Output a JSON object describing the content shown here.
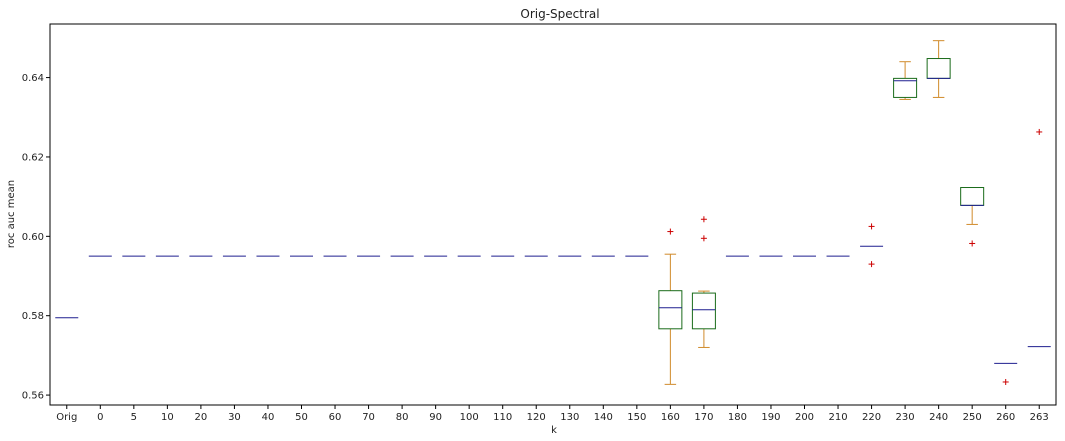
{
  "chart_data": {
    "type": "box",
    "title": "Orig-Spectral",
    "xlabel": "k",
    "ylabel": "roc auc mean",
    "ylim": [
      0.5575,
      0.6535
    ],
    "yticks": [
      0.56,
      0.58,
      0.6,
      0.62,
      0.64
    ],
    "ytick_labels": [
      "0.56",
      "0.58",
      "0.60",
      "0.62",
      "0.64"
    ],
    "grid": false,
    "colors": {
      "box": "#1a6b1a",
      "whisker": "#d08a2a",
      "median": "#1f1f8f",
      "flier": "#cc0000",
      "axis": "#000000"
    },
    "categories": [
      "Orig",
      "0",
      "5",
      "10",
      "20",
      "30",
      "40",
      "50",
      "60",
      "70",
      "80",
      "90",
      "100",
      "110",
      "120",
      "130",
      "140",
      "150",
      "160",
      "170",
      "180",
      "190",
      "200",
      "210",
      "220",
      "230",
      "240",
      "250",
      "260",
      "263"
    ],
    "boxes": [
      {
        "label": "Orig",
        "q1": 0.5795,
        "median": 0.5795,
        "q3": 0.5795,
        "whislo": 0.5795,
        "whishi": 0.5795,
        "fliers": []
      },
      {
        "label": "0",
        "q1": 0.595,
        "median": 0.595,
        "q3": 0.595,
        "whislo": 0.595,
        "whishi": 0.595,
        "fliers": []
      },
      {
        "label": "5",
        "q1": 0.595,
        "median": 0.595,
        "q3": 0.595,
        "whislo": 0.595,
        "whishi": 0.595,
        "fliers": []
      },
      {
        "label": "10",
        "q1": 0.595,
        "median": 0.595,
        "q3": 0.595,
        "whislo": 0.595,
        "whishi": 0.595,
        "fliers": []
      },
      {
        "label": "20",
        "q1": 0.595,
        "median": 0.595,
        "q3": 0.595,
        "whislo": 0.595,
        "whishi": 0.595,
        "fliers": []
      },
      {
        "label": "30",
        "q1": 0.595,
        "median": 0.595,
        "q3": 0.595,
        "whislo": 0.595,
        "whishi": 0.595,
        "fliers": []
      },
      {
        "label": "40",
        "q1": 0.595,
        "median": 0.595,
        "q3": 0.595,
        "whislo": 0.595,
        "whishi": 0.595,
        "fliers": []
      },
      {
        "label": "50",
        "q1": 0.595,
        "median": 0.595,
        "q3": 0.595,
        "whislo": 0.595,
        "whishi": 0.595,
        "fliers": []
      },
      {
        "label": "60",
        "q1": 0.595,
        "median": 0.595,
        "q3": 0.595,
        "whislo": 0.595,
        "whishi": 0.595,
        "fliers": []
      },
      {
        "label": "70",
        "q1": 0.595,
        "median": 0.595,
        "q3": 0.595,
        "whislo": 0.595,
        "whishi": 0.595,
        "fliers": []
      },
      {
        "label": "80",
        "q1": 0.595,
        "median": 0.595,
        "q3": 0.595,
        "whislo": 0.595,
        "whishi": 0.595,
        "fliers": []
      },
      {
        "label": "90",
        "q1": 0.595,
        "median": 0.595,
        "q3": 0.595,
        "whislo": 0.595,
        "whishi": 0.595,
        "fliers": []
      },
      {
        "label": "100",
        "q1": 0.595,
        "median": 0.595,
        "q3": 0.595,
        "whislo": 0.595,
        "whishi": 0.595,
        "fliers": []
      },
      {
        "label": "110",
        "q1": 0.595,
        "median": 0.595,
        "q3": 0.595,
        "whislo": 0.595,
        "whishi": 0.595,
        "fliers": []
      },
      {
        "label": "120",
        "q1": 0.595,
        "median": 0.595,
        "q3": 0.595,
        "whislo": 0.595,
        "whishi": 0.595,
        "fliers": []
      },
      {
        "label": "130",
        "q1": 0.595,
        "median": 0.595,
        "q3": 0.595,
        "whislo": 0.595,
        "whishi": 0.595,
        "fliers": []
      },
      {
        "label": "140",
        "q1": 0.595,
        "median": 0.595,
        "q3": 0.595,
        "whislo": 0.595,
        "whishi": 0.595,
        "fliers": []
      },
      {
        "label": "150",
        "q1": 0.595,
        "median": 0.595,
        "q3": 0.595,
        "whislo": 0.595,
        "whishi": 0.595,
        "fliers": []
      },
      {
        "label": "160",
        "q1": 0.5767,
        "median": 0.582,
        "q3": 0.5863,
        "whislo": 0.5627,
        "whishi": 0.5955,
        "fliers": [
          0.6012
        ]
      },
      {
        "label": "170",
        "q1": 0.5767,
        "median": 0.5815,
        "q3": 0.5857,
        "whislo": 0.572,
        "whishi": 0.5862,
        "fliers": [
          0.6043,
          0.5995
        ]
      },
      {
        "label": "180",
        "q1": 0.595,
        "median": 0.595,
        "q3": 0.595,
        "whislo": 0.595,
        "whishi": 0.595,
        "fliers": []
      },
      {
        "label": "190",
        "q1": 0.595,
        "median": 0.595,
        "q3": 0.595,
        "whislo": 0.595,
        "whishi": 0.595,
        "fliers": []
      },
      {
        "label": "200",
        "q1": 0.595,
        "median": 0.595,
        "q3": 0.595,
        "whislo": 0.595,
        "whishi": 0.595,
        "fliers": []
      },
      {
        "label": "210",
        "q1": 0.595,
        "median": 0.595,
        "q3": 0.595,
        "whislo": 0.595,
        "whishi": 0.595,
        "fliers": []
      },
      {
        "label": "220",
        "q1": 0.5975,
        "median": 0.5975,
        "q3": 0.5975,
        "whislo": 0.5975,
        "whishi": 0.5975,
        "fliers": [
          0.6025,
          0.593
        ]
      },
      {
        "label": "230",
        "q1": 0.635,
        "median": 0.6392,
        "q3": 0.6398,
        "whislo": 0.6345,
        "whishi": 0.644,
        "fliers": []
      },
      {
        "label": "240",
        "q1": 0.6398,
        "median": 0.6398,
        "q3": 0.6448,
        "whislo": 0.635,
        "whishi": 0.6493,
        "fliers": []
      },
      {
        "label": "250",
        "q1": 0.6078,
        "median": 0.6078,
        "q3": 0.6123,
        "whislo": 0.603,
        "whishi": 0.6123,
        "fliers": [
          0.5982
        ]
      },
      {
        "label": "260",
        "q1": 0.568,
        "median": 0.568,
        "q3": 0.568,
        "whislo": 0.568,
        "whishi": 0.568,
        "fliers": [
          0.5633
        ]
      },
      {
        "label": "263",
        "q1": 0.5722,
        "median": 0.5722,
        "q3": 0.5722,
        "whislo": 0.5722,
        "whishi": 0.5722,
        "fliers": [
          0.6263
        ]
      }
    ]
  }
}
